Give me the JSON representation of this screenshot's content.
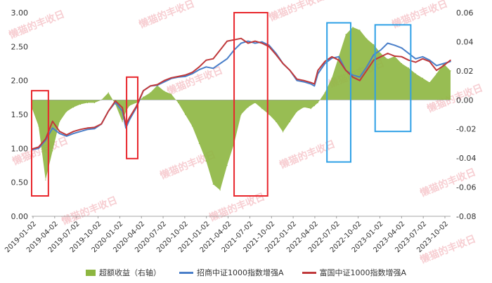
{
  "colors": {
    "excess": "#8DB640",
    "series_a": "#4A7FC9",
    "series_b": "#C0393B",
    "box_red": "#E8262C",
    "box_blue": "#2EA0E6",
    "watermark": "#E9727F",
    "axis_text": "#333333",
    "grid": "#E6E6E6"
  },
  "watermark_text": "懒猫的丰收日",
  "chart_data": {
    "type": "line",
    "left_axis": {
      "min": 0.0,
      "max": 3.0,
      "ticks": [
        "0.00",
        "0.50",
        "1.00",
        "1.50",
        "2.00",
        "2.50",
        "3.00"
      ]
    },
    "right_axis": {
      "min": -0.08,
      "max": 0.06,
      "ticks": [
        "-0.08",
        "-0.06",
        "-0.04",
        "-0.02",
        "0.00",
        "0.02",
        "0.04",
        "0.06"
      ]
    },
    "x_labels": [
      "2019-01-02",
      "2019-04-02",
      "2019-07-02",
      "2019-10-02",
      "2020-01-02",
      "2020-04-02",
      "2020-07-02",
      "2020-10-02",
      "2021-01-02",
      "2021-04-02",
      "2021-07-02",
      "2021-10-02",
      "2022-01-02",
      "2022-04-02",
      "2022-07-02",
      "2022-10-02",
      "2023-01-02",
      "2023-04-02",
      "2023-07-02",
      "2023-10-02"
    ],
    "x_range": [
      0,
      60
    ],
    "series": [
      {
        "name": "招商中证1000指数增强A",
        "axis": "left",
        "x": [
          0,
          1,
          2,
          3,
          4,
          5,
          6,
          7,
          8,
          9,
          10,
          11,
          12,
          13,
          13.5,
          14,
          15,
          16,
          17,
          18,
          19,
          20,
          21,
          22,
          23,
          24,
          25,
          26,
          27,
          28,
          29,
          30,
          31,
          32,
          33,
          34,
          35,
          36,
          37,
          38,
          39,
          40,
          40.5,
          41,
          42,
          43,
          44,
          45,
          46,
          47,
          48,
          49,
          50,
          51,
          52,
          53,
          54,
          55,
          56,
          57,
          58,
          59,
          60
        ],
        "values": [
          0.98,
          1.0,
          1.12,
          1.3,
          1.22,
          1.18,
          1.22,
          1.25,
          1.28,
          1.29,
          1.36,
          1.55,
          1.68,
          1.55,
          1.3,
          1.42,
          1.6,
          1.85,
          1.92,
          1.93,
          1.98,
          2.03,
          2.05,
          2.06,
          2.1,
          2.16,
          2.2,
          2.18,
          2.25,
          2.32,
          2.45,
          2.55,
          2.58,
          2.55,
          2.57,
          2.52,
          2.4,
          2.25,
          2.15,
          2.0,
          1.98,
          1.95,
          1.92,
          2.1,
          2.25,
          2.33,
          2.35,
          2.15,
          2.08,
          2.05,
          2.2,
          2.38,
          2.45,
          2.55,
          2.52,
          2.48,
          2.4,
          2.32,
          2.35,
          2.3,
          2.22,
          2.25,
          2.28
        ]
      },
      {
        "name": "富国中证1000指数增强A",
        "axis": "left",
        "x": [
          0,
          1,
          2,
          3,
          4,
          5,
          6,
          7,
          8,
          9,
          10,
          11,
          12,
          13,
          13.5,
          14,
          15,
          16,
          17,
          18,
          19,
          20,
          21,
          22,
          23,
          24,
          25,
          26,
          27,
          28,
          29,
          30,
          31,
          32,
          33,
          34,
          35,
          36,
          37,
          38,
          39,
          40,
          40.5,
          41,
          42,
          43,
          44,
          45,
          46,
          47,
          48,
          49,
          50,
          51,
          52,
          53,
          54,
          55,
          56,
          57,
          58,
          59,
          60
        ],
        "values": [
          0.99,
          1.02,
          1.14,
          1.4,
          1.25,
          1.2,
          1.25,
          1.28,
          1.3,
          1.31,
          1.36,
          1.55,
          1.7,
          1.6,
          1.35,
          1.45,
          1.62,
          1.85,
          1.92,
          1.94,
          2.0,
          2.04,
          2.06,
          2.08,
          2.12,
          2.2,
          2.3,
          2.32,
          2.45,
          2.58,
          2.6,
          2.62,
          2.55,
          2.58,
          2.55,
          2.5,
          2.38,
          2.25,
          2.15,
          2.02,
          2.0,
          1.97,
          1.95,
          2.15,
          2.28,
          2.35,
          2.3,
          2.15,
          2.05,
          2.0,
          2.15,
          2.3,
          2.35,
          2.4,
          2.36,
          2.35,
          2.3,
          2.27,
          2.32,
          2.28,
          2.15,
          2.22,
          2.3
        ]
      },
      {
        "name": "超额收益（右轴）",
        "axis": "right",
        "type": "area",
        "x": [
          0,
          1,
          2,
          3,
          4,
          5,
          6,
          7,
          8,
          9,
          10,
          11,
          12,
          13,
          13.5,
          14,
          15,
          16,
          17,
          18,
          19,
          20,
          21,
          22,
          23,
          24,
          25,
          26,
          27,
          28,
          29,
          30,
          31,
          32,
          33,
          34,
          35,
          36,
          37,
          38,
          39,
          40,
          40.5,
          41,
          42,
          43,
          44,
          45,
          46,
          47,
          48,
          49,
          50,
          51,
          52,
          53,
          54,
          55,
          56,
          57,
          58,
          59,
          60
        ],
        "values": [
          -0.005,
          -0.018,
          -0.055,
          -0.035,
          -0.015,
          -0.008,
          -0.005,
          -0.003,
          -0.002,
          -0.002,
          0.0,
          0.005,
          -0.003,
          -0.015,
          -0.008,
          -0.004,
          -0.002,
          0.002,
          0.005,
          0.01,
          0.006,
          0.004,
          -0.002,
          -0.01,
          -0.018,
          -0.03,
          -0.042,
          -0.058,
          -0.062,
          -0.045,
          -0.03,
          -0.01,
          -0.005,
          -0.002,
          -0.006,
          -0.01,
          -0.015,
          -0.022,
          -0.015,
          -0.008,
          -0.005,
          -0.006,
          -0.004,
          -0.002,
          0.005,
          0.015,
          0.03,
          0.045,
          0.05,
          0.048,
          0.042,
          0.038,
          0.032,
          0.028,
          0.03,
          0.025,
          0.022,
          0.018,
          0.015,
          0.012,
          0.018,
          0.025,
          0.02
        ]
      }
    ],
    "highlight_boxes": [
      {
        "color": "red",
        "x0": 0,
        "x1": 2.4,
        "y0": 0.3,
        "y1": 1.85
      },
      {
        "color": "red",
        "x0": 13.6,
        "x1": 15.2,
        "y0": 0.85,
        "y1": 2.05
      },
      {
        "color": "red",
        "x0": 29.0,
        "x1": 33.8,
        "y0": 0.3,
        "y1": 3.0
      },
      {
        "color": "blue",
        "x0": 42.3,
        "x1": 45.7,
        "y0": 0.8,
        "y1": 2.85
      },
      {
        "color": "blue",
        "x0": 49.2,
        "x1": 54.3,
        "y0": 1.25,
        "y1": 2.82
      }
    ],
    "grid": false,
    "legend_position": "bottom"
  }
}
